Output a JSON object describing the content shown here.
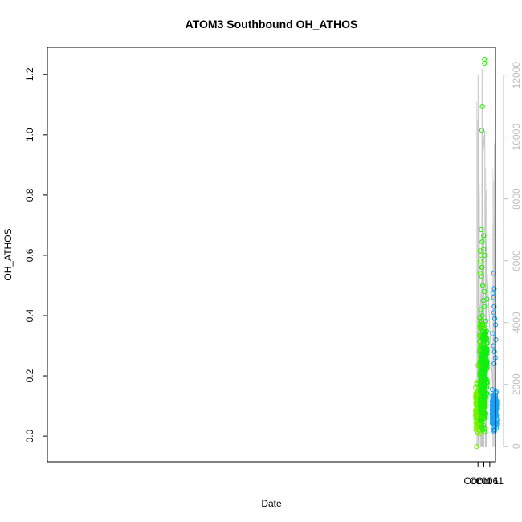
{
  "chart_data": {
    "type": "scatter",
    "title": "ATOM3 Southbound OH_ATHOS",
    "xlabel": "Date",
    "ylabel": "OH_ATHOS",
    "x_ticks": [
      {
        "date": "2017-10-01",
        "label": "Oct 01"
      },
      {
        "date": "2017-10-06",
        "label": "Oct 06"
      },
      {
        "date": "2017-10-11",
        "label": "Oct 11"
      }
    ],
    "xlim": [
      "2016-09-30T10:00",
      "2017-10-15T21:00"
    ],
    "ylim": [
      -0.085,
      1.29
    ],
    "y_ticks": [
      0.0,
      0.2,
      0.4,
      0.6,
      0.8,
      1.0,
      1.2
    ],
    "y_tick_labels": [
      "0.0",
      "0.2",
      "0.4",
      "0.6",
      "0.8",
      "1.0",
      "1.2"
    ],
    "y2_ticks": [
      0,
      2000,
      4000,
      6000,
      8000,
      10000,
      12000
    ],
    "y2_tick_labels": [
      "0",
      "2000",
      "4000",
      "6000",
      "8000",
      "10000",
      "12000"
    ],
    "y2lim": [
      -500,
      12900
    ],
    "grid": false,
    "colors": {
      "altitude_line": "#c4c4c4",
      "axis": "#000000",
      "right_axis": "#bdbdbd"
    },
    "flight_clusters": [
      {
        "date": "2017-10-01T00:00",
        "color": "#77f000",
        "ymin": -0.03,
        "ymax": 0.25,
        "dense_range": [
          -0.01,
          0.19
        ],
        "n": 140,
        "outliers": [
          0.25,
          0.235,
          -0.035
        ]
      },
      {
        "date": "2017-10-04T07:00",
        "color": "#44f000",
        "ymin": 0.06,
        "ymax": 0.665,
        "dense_range": [
          0.08,
          0.45
        ],
        "n": 90,
        "outliers": [
          0.665,
          0.645,
          0.615,
          0.6,
          0.58,
          0.56,
          0.54
        ]
      },
      {
        "date": "2017-10-04T23:00",
        "color": "#22f000",
        "ymin": -0.02,
        "ymax": 1.25,
        "dense_range": [
          -0.02,
          0.32
        ],
        "n": 260,
        "outliers": [
          1.25,
          1.237,
          1.093,
          1.015,
          0.685,
          0.665,
          0.645,
          0.62,
          0.6,
          0.56,
          0.53,
          0.5,
          0.48,
          0.45,
          0.42,
          0.4,
          0.38
        ]
      },
      {
        "date": "2017-10-06T21:00",
        "color": "#11ee11",
        "ymin": 0.075,
        "ymax": 0.455,
        "dense_range": [
          0.1,
          0.4
        ],
        "n": 140,
        "outliers": [
          0.455,
          0.43,
          0.075
        ]
      },
      {
        "date": "2017-10-14T23:00",
        "color": "#1ca0f0",
        "ymin": -0.01,
        "ymax": 0.54,
        "dense_range": [
          0.0,
          0.18
        ],
        "n": 160,
        "outliers": [
          0.54,
          0.49,
          0.475,
          0.46,
          0.43,
          0.41,
          0.39,
          0.37,
          0.34,
          0.32,
          0.3,
          0.28,
          0.26,
          0.24
        ]
      }
    ],
    "altitude_series": [
      {
        "date": "2017-10-01T00:00",
        "alt": 500
      },
      {
        "date": "2017-10-01T02:00",
        "alt": 12000
      },
      {
        "date": "2017-10-01T03:00",
        "alt": 3000
      },
      {
        "date": "2017-10-04T07:00",
        "alt": 5500
      },
      {
        "date": "2017-10-04T11:00",
        "alt": 12200
      },
      {
        "date": "2017-10-04T13:00",
        "alt": 5200
      },
      {
        "date": "2017-10-04T22:00",
        "alt": 4800
      },
      {
        "date": "2017-10-04T23:30",
        "alt": 10200
      },
      {
        "date": "2017-10-05T01:00",
        "alt": 1500
      },
      {
        "date": "2017-10-05T03:00",
        "alt": 9400
      },
      {
        "date": "2017-10-06T20:00",
        "alt": 10200
      },
      {
        "date": "2017-10-06T22:00",
        "alt": 7000
      },
      {
        "date": "2017-10-14T23:00",
        "alt": 800
      },
      {
        "date": "2017-10-15T01:00",
        "alt": 9800
      }
    ]
  }
}
